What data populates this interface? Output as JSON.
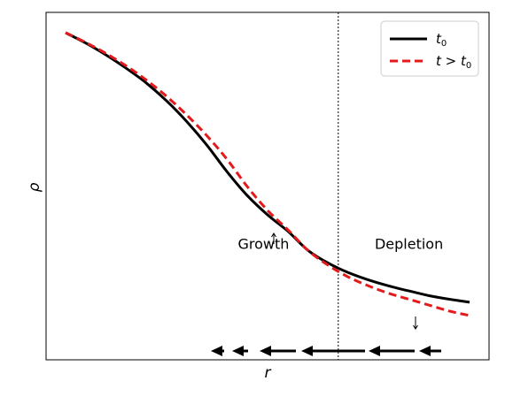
{
  "chart_data": {
    "type": "line",
    "xlabel": "r",
    "ylabel": "ρ",
    "x_ticks": [],
    "y_ticks": [],
    "xlim": [
      0,
      1
    ],
    "ylim": [
      0,
      1
    ],
    "series": [
      {
        "name": "t0",
        "legend_main": "t",
        "legend_sub": "0",
        "color": "#000000",
        "style": "solid",
        "x": [
          0,
          0.05,
          0.1,
          0.15,
          0.2,
          0.25,
          0.3,
          0.35,
          0.4,
          0.45,
          0.5,
          0.55,
          0.6,
          0.65,
          0.7,
          0.75,
          0.8,
          0.85,
          0.9,
          0.95,
          1.0
        ],
        "y": [
          1.0,
          0.965,
          0.925,
          0.88,
          0.83,
          0.77,
          0.7,
          0.62,
          0.53,
          0.45,
          0.385,
          0.33,
          0.265,
          0.222,
          0.19,
          0.165,
          0.145,
          0.128,
          0.112,
          0.1,
          0.09
        ]
      },
      {
        "name": "t > t0",
        "legend_main": "t > t",
        "legend_sub": "0",
        "color": "#e31a1c",
        "style": "dashed",
        "x": [
          0,
          0.05,
          0.1,
          0.15,
          0.2,
          0.25,
          0.3,
          0.35,
          0.4,
          0.45,
          0.5,
          0.55,
          0.6,
          0.65,
          0.7,
          0.75,
          0.8,
          0.85,
          0.9,
          0.95,
          1.0
        ],
        "y": [
          1.0,
          0.967,
          0.93,
          0.888,
          0.84,
          0.785,
          0.722,
          0.652,
          0.572,
          0.48,
          0.4,
          0.335,
          0.265,
          0.215,
          0.175,
          0.145,
          0.12,
          0.1,
          0.08,
          0.06,
          0.045
        ]
      }
    ],
    "vline_x": 0.675,
    "annotations": [
      {
        "text": "Growth",
        "x": 0.49,
        "y": 0.27
      },
      {
        "text": "Depletion",
        "x": 0.85,
        "y": 0.27
      }
    ],
    "legend_position": "top-right",
    "grid": false
  }
}
